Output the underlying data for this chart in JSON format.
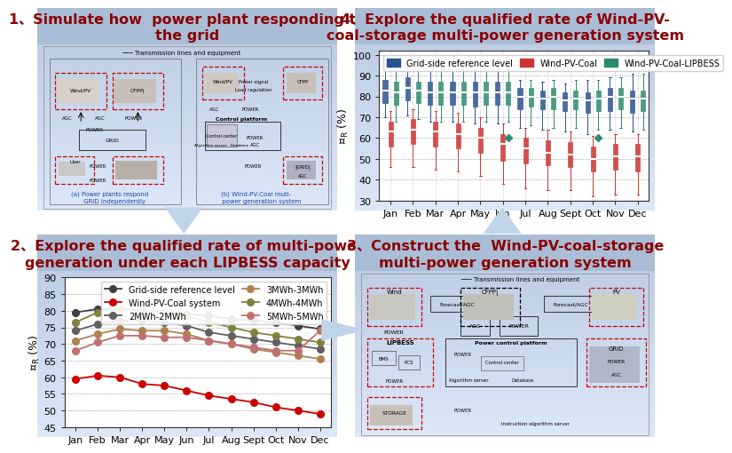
{
  "background_color": "#FFFFFF",
  "panel_bg_top": "#c8d4e8",
  "panel_bg_bottom": "#dce6f0",
  "title_color": "#8B0000",
  "arrow_color": "#a8c4e0",
  "panel1_title_line1": "1、Simulate how  power plant responding to",
  "panel1_title_line2": "the grid",
  "panel2_title_line1": "2、Explore the qualified rate of multi-power",
  "panel2_title_line2": "generation under each LIPBESS capacity",
  "panel3_title_line1": "3、Construct the  Wind-PV-coal-storage",
  "panel3_title_line2": "multi-power generation system",
  "panel4_title_line1": "4、Explore the qualified rate of Wind-PV-",
  "panel4_title_line2": "coal-storage multi-power generation system",
  "months": [
    "Jan",
    "Feb",
    "Mar",
    "Apr",
    "May",
    "Jun",
    "Jul",
    "Aug",
    "Sept",
    "Oct",
    "Nov",
    "Dec"
  ],
  "line_chart": {
    "ylim": [
      45,
      90
    ],
    "yticks": [
      45,
      50,
      55,
      60,
      65,
      70,
      75,
      80,
      85,
      90
    ],
    "series": [
      {
        "label": "Grid-side reference level",
        "color": "#404040",
        "marker": "o",
        "values": [
          79.5,
          80.5,
          80.5,
          80.0,
          79.5,
          79.0,
          78.5,
          77.5,
          77.0,
          76.5,
          75.5,
          74.5
        ]
      },
      {
        "label": "Wind-PV-Coal system",
        "color": "#CC0000",
        "marker": "o",
        "values": [
          59.5,
          60.5,
          60.0,
          58.0,
          57.5,
          56.0,
          54.5,
          53.5,
          52.5,
          51.0,
          50.0,
          49.0
        ]
      },
      {
        "label": "2MWh-2MWh",
        "color": "#606060",
        "marker": "o",
        "values": [
          74.0,
          76.0,
          77.0,
          77.0,
          76.5,
          75.5,
          73.5,
          72.5,
          71.5,
          70.5,
          69.5,
          68.5
        ]
      },
      {
        "label": "3MWh-3MWh",
        "color": "#b08050",
        "marker": "o",
        "values": [
          71.0,
          73.0,
          74.5,
          74.0,
          74.0,
          73.0,
          71.0,
          70.0,
          68.5,
          67.5,
          66.5,
          65.5
        ]
      },
      {
        "label": "4MWh-4MWh",
        "color": "#808040",
        "marker": "o",
        "values": [
          76.5,
          79.5,
          80.5,
          80.0,
          79.5,
          78.5,
          76.5,
          75.0,
          73.5,
          72.5,
          71.5,
          70.5
        ]
      },
      {
        "label": "5MWh-5MWh",
        "color": "#c07070",
        "marker": "o",
        "values": [
          68.0,
          70.5,
          72.5,
          72.5,
          72.0,
          72.0,
          71.0,
          70.0,
          69.0,
          68.0,
          68.0,
          74.0
        ]
      }
    ]
  },
  "box_chart": {
    "ylim": [
      30,
      102
    ],
    "yticks": [
      30,
      40,
      50,
      60,
      70,
      80,
      90,
      100
    ],
    "legend": [
      {
        "label": "Grid-side reference level",
        "color": "#2b5190"
      },
      {
        "label": "Wind-PV-Coal",
        "color": "#CC3333"
      },
      {
        "label": "Wind-PV-Coal-LIPBESS",
        "color": "#2d8a6e"
      }
    ],
    "series": [
      {
        "color": "#2b5190",
        "boxes": [
          {
            "q1": 77,
            "med": 83,
            "q3": 88,
            "whislo": 70,
            "whishi": 93
          },
          {
            "q1": 78,
            "med": 84,
            "q3": 89,
            "whislo": 71,
            "whishi": 94
          },
          {
            "q1": 76,
            "med": 82,
            "q3": 87,
            "whislo": 68,
            "whishi": 92
          },
          {
            "q1": 76,
            "med": 82,
            "q3": 87,
            "whislo": 68,
            "whishi": 95
          },
          {
            "q1": 75,
            "med": 82,
            "q3": 87,
            "whislo": 67,
            "whishi": 93
          },
          {
            "q1": 76,
            "med": 82,
            "q3": 87,
            "whislo": 67,
            "whishi": 95
          },
          {
            "q1": 74,
            "med": 80,
            "q3": 84,
            "whislo": 65,
            "whishi": 88
          },
          {
            "q1": 74,
            "med": 79,
            "q3": 83,
            "whislo": 64,
            "whishi": 87
          },
          {
            "q1": 73,
            "med": 78,
            "q3": 82,
            "whislo": 63,
            "whishi": 86
          },
          {
            "q1": 72,
            "med": 78,
            "q3": 82,
            "whislo": 62,
            "whishi": 88
          },
          {
            "q1": 73,
            "med": 80,
            "q3": 84,
            "whislo": 64,
            "whishi": 89
          },
          {
            "q1": 72,
            "med": 79,
            "q3": 83,
            "whislo": 63,
            "whishi": 91
          }
        ]
      },
      {
        "color": "#CC3333",
        "boxes": [
          {
            "q1": 56,
            "med": 63,
            "q3": 68,
            "whislo": 46,
            "whishi": 73
          },
          {
            "q1": 57,
            "med": 64,
            "q3": 69,
            "whislo": 46,
            "whishi": 74
          },
          {
            "q1": 56,
            "med": 63,
            "q3": 68,
            "whislo": 45,
            "whishi": 73
          },
          {
            "q1": 55,
            "med": 62,
            "q3": 67,
            "whislo": 44,
            "whishi": 72
          },
          {
            "q1": 53,
            "med": 60,
            "q3": 65,
            "whislo": 42,
            "whishi": 70
          },
          {
            "q1": 49,
            "med": 57,
            "q3": 62,
            "whislo": 38,
            "whishi": 67
          },
          {
            "q1": 48,
            "med": 55,
            "q3": 60,
            "whislo": 36,
            "whishi": 65
          },
          {
            "q1": 47,
            "med": 53,
            "q3": 59,
            "whislo": 35,
            "whishi": 64
          },
          {
            "q1": 46,
            "med": 52,
            "q3": 58,
            "whislo": 35,
            "whishi": 63
          },
          {
            "q1": 44,
            "med": 50,
            "q3": 56,
            "whislo": 32,
            "whishi": 61
          },
          {
            "q1": 45,
            "med": 51,
            "q3": 57,
            "whislo": 33,
            "whishi": 62
          },
          {
            "q1": 44,
            "med": 51,
            "q3": 57,
            "whislo": 33,
            "whishi": 62
          }
        ]
      },
      {
        "color": "#2d8a6e",
        "boxes": [
          {
            "q1": 76,
            "med": 82,
            "q3": 87,
            "whislo": 68,
            "whishi": 93
          },
          {
            "q1": 77,
            "med": 83,
            "q3": 87,
            "whislo": 69,
            "whishi": 93
          },
          {
            "q1": 76,
            "med": 82,
            "q3": 87,
            "whislo": 68,
            "whishi": 93
          },
          {
            "q1": 76,
            "med": 82,
            "q3": 87,
            "whislo": 68,
            "whishi": 94
          },
          {
            "q1": 76,
            "med": 82,
            "q3": 87,
            "whislo": 68,
            "whishi": 93
          },
          {
            "q1": 76,
            "med": 82,
            "q3": 87,
            "whislo": 68,
            "whishi": 93,
            "outlier": 60
          },
          {
            "q1": 75,
            "med": 80,
            "q3": 84,
            "whislo": 66,
            "whishi": 88
          },
          {
            "q1": 74,
            "med": 80,
            "q3": 84,
            "whislo": 65,
            "whishi": 88
          },
          {
            "q1": 74,
            "med": 79,
            "q3": 83,
            "whislo": 65,
            "whishi": 88
          },
          {
            "q1": 73,
            "med": 79,
            "q3": 83,
            "whislo": 64,
            "whishi": 88,
            "outlier": 60
          },
          {
            "q1": 74,
            "med": 80,
            "q3": 84,
            "whislo": 65,
            "whishi": 89
          },
          {
            "q1": 73,
            "med": 79,
            "q3": 83,
            "whislo": 64,
            "whishi": 91
          }
        ]
      }
    ]
  }
}
